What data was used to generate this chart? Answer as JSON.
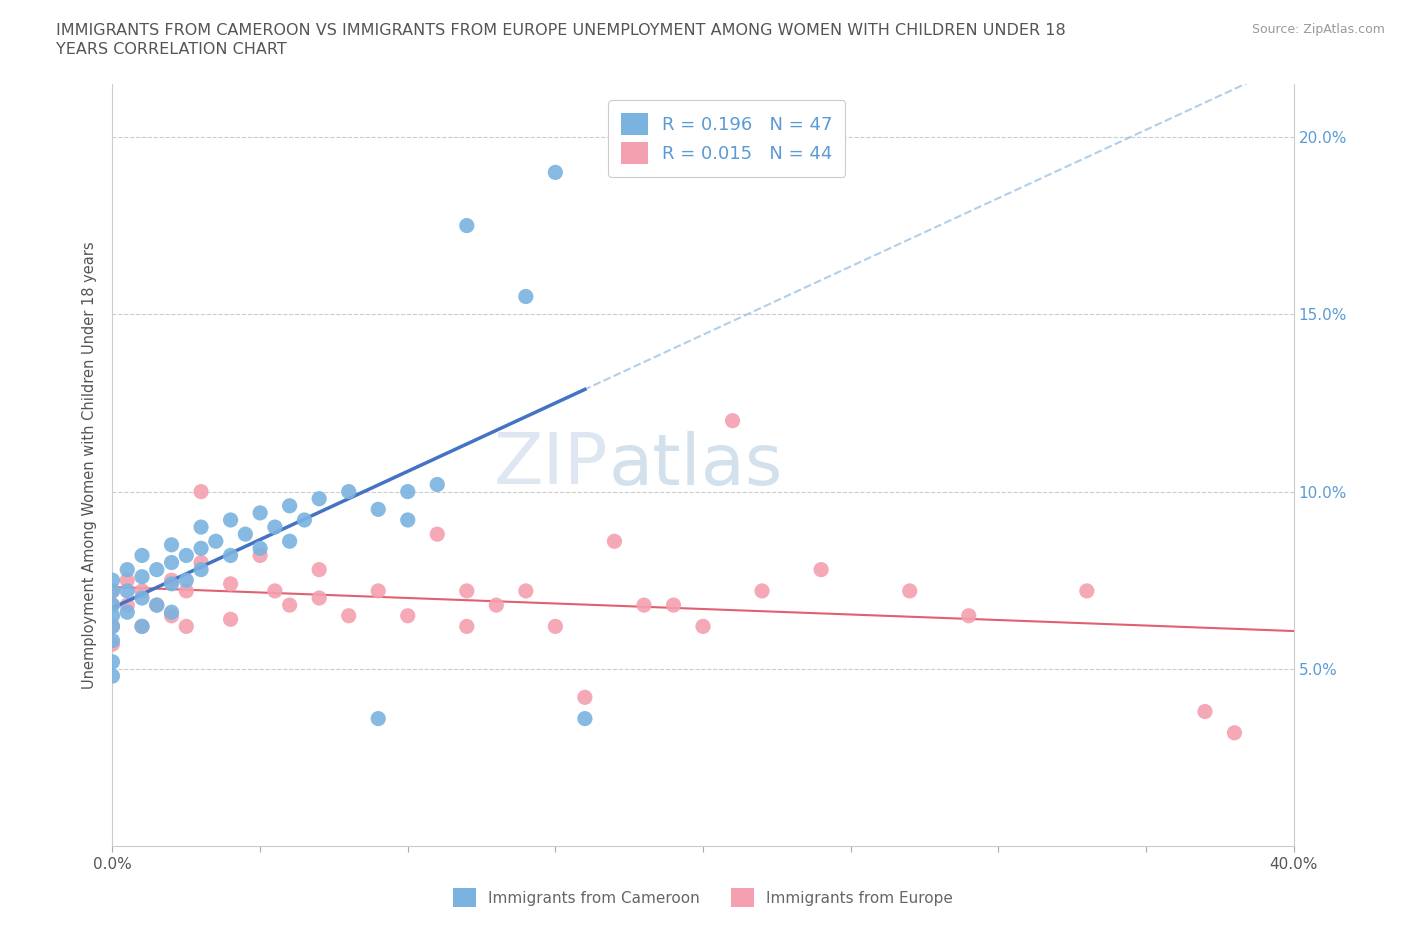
{
  "title_line1": "IMMIGRANTS FROM CAMEROON VS IMMIGRANTS FROM EUROPE UNEMPLOYMENT AMONG WOMEN WITH CHILDREN UNDER 18",
  "title_line2": "YEARS CORRELATION CHART",
  "source": "Source: ZipAtlas.com",
  "ylabel": "Unemployment Among Women with Children Under 18 years",
  "xmin": 0.0,
  "xmax": 0.4,
  "ymin": 0.0,
  "ymax": 0.215,
  "yticks": [
    0.05,
    0.1,
    0.15,
    0.2
  ],
  "ytick_labels": [
    "5.0%",
    "10.0%",
    "15.0%",
    "20.0%"
  ],
  "xticks": [
    0.0,
    0.05,
    0.1,
    0.15,
    0.2,
    0.25,
    0.3,
    0.35,
    0.4
  ],
  "xtick_labels": [
    "0.0%",
    "",
    "",
    "",
    "",
    "",
    "",
    "",
    "40.0%"
  ],
  "cameroon_color": "#7ab3e0",
  "europe_color": "#f4a0b0",
  "trendline_blue_solid": "#4472c4",
  "trendline_blue_dash": "#9dc3e6",
  "trendline_pink": "#e06070",
  "cameroon_R": 0.196,
  "cameroon_N": 47,
  "europe_R": 0.015,
  "europe_N": 44,
  "cameroon_x": [
    0.0,
    0.0,
    0.0,
    0.0,
    0.0,
    0.0,
    0.0,
    0.0,
    0.005,
    0.005,
    0.005,
    0.01,
    0.01,
    0.01,
    0.01,
    0.015,
    0.015,
    0.02,
    0.02,
    0.02,
    0.02,
    0.025,
    0.025,
    0.03,
    0.03,
    0.03,
    0.035,
    0.04,
    0.04,
    0.045,
    0.05,
    0.05,
    0.055,
    0.06,
    0.06,
    0.065,
    0.07,
    0.08,
    0.09,
    0.09,
    0.1,
    0.1,
    0.11,
    0.12,
    0.14,
    0.15,
    0.16
  ],
  "cameroon_y": [
    0.068,
    0.075,
    0.072,
    0.065,
    0.062,
    0.058,
    0.052,
    0.048,
    0.078,
    0.072,
    0.066,
    0.082,
    0.076,
    0.07,
    0.062,
    0.078,
    0.068,
    0.085,
    0.08,
    0.074,
    0.066,
    0.082,
    0.075,
    0.09,
    0.084,
    0.078,
    0.086,
    0.092,
    0.082,
    0.088,
    0.094,
    0.084,
    0.09,
    0.096,
    0.086,
    0.092,
    0.098,
    0.1,
    0.095,
    0.036,
    0.1,
    0.092,
    0.102,
    0.175,
    0.155,
    0.19,
    0.036
  ],
  "europe_x": [
    0.0,
    0.0,
    0.0,
    0.0,
    0.005,
    0.005,
    0.01,
    0.01,
    0.015,
    0.02,
    0.02,
    0.025,
    0.025,
    0.03,
    0.03,
    0.04,
    0.04,
    0.05,
    0.055,
    0.06,
    0.07,
    0.07,
    0.08,
    0.09,
    0.1,
    0.11,
    0.12,
    0.12,
    0.13,
    0.14,
    0.15,
    0.16,
    0.17,
    0.18,
    0.19,
    0.2,
    0.21,
    0.22,
    0.24,
    0.27,
    0.29,
    0.33,
    0.37,
    0.38
  ],
  "europe_y": [
    0.072,
    0.068,
    0.062,
    0.057,
    0.075,
    0.068,
    0.072,
    0.062,
    0.068,
    0.075,
    0.065,
    0.072,
    0.062,
    0.1,
    0.08,
    0.074,
    0.064,
    0.082,
    0.072,
    0.068,
    0.078,
    0.07,
    0.065,
    0.072,
    0.065,
    0.088,
    0.072,
    0.062,
    0.068,
    0.072,
    0.062,
    0.042,
    0.086,
    0.068,
    0.068,
    0.062,
    0.12,
    0.072,
    0.078,
    0.072,
    0.065,
    0.072,
    0.038,
    0.032
  ]
}
